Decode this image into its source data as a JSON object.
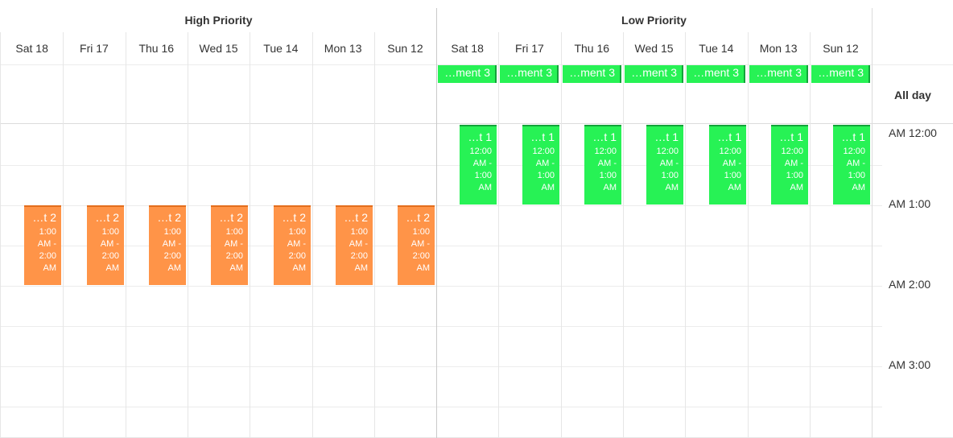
{
  "groups": [
    {
      "title": "High Priority",
      "days": [
        "Sat 18",
        "Fri 17",
        "Thu 16",
        "Wed 15",
        "Tue 14",
        "Mon 13",
        "Sun 12"
      ],
      "all_day": [],
      "appointments": [
        {
          "label": "…t 2",
          "time": "1:00 AM - 2:00 AM",
          "color": "orange"
        },
        {
          "label": "…t 2",
          "time": "1:00 AM - 2:00 AM",
          "color": "orange"
        },
        {
          "label": "…t 2",
          "time": "1:00 AM - 2:00 AM",
          "color": "orange"
        },
        {
          "label": "…t 2",
          "time": "1:00 AM - 2:00 AM",
          "color": "orange"
        },
        {
          "label": "…t 2",
          "time": "1:00 AM - 2:00 AM",
          "color": "orange"
        },
        {
          "label": "…t 2",
          "time": "1:00 AM - 2:00 AM",
          "color": "orange"
        },
        {
          "label": "…t 2",
          "time": "1:00 AM - 2:00 AM",
          "color": "orange"
        }
      ]
    },
    {
      "title": "Low Priority",
      "days": [
        "Sat 18",
        "Fri 17",
        "Thu 16",
        "Wed 15",
        "Tue 14",
        "Mon 13",
        "Sun 12"
      ],
      "all_day": [
        "…ment 3",
        "…ment 3",
        "…ment 3",
        "…ment 3",
        "…ment 3",
        "…ment 3",
        "…ment 3"
      ],
      "appointments": [
        {
          "label": "…t 1",
          "time": "12:00 AM - 1:00 AM",
          "color": "green"
        },
        {
          "label": "…t 1",
          "time": "12:00 AM - 1:00 AM",
          "color": "green"
        },
        {
          "label": "…t 1",
          "time": "12:00 AM - 1:00 AM",
          "color": "green"
        },
        {
          "label": "…t 1",
          "time": "12:00 AM - 1:00 AM",
          "color": "green"
        },
        {
          "label": "…t 1",
          "time": "12:00 AM - 1:00 AM",
          "color": "green"
        },
        {
          "label": "…t 1",
          "time": "12:00 AM - 1:00 AM",
          "color": "green"
        },
        {
          "label": "…t 1",
          "time": "12:00 AM - 1:00 AM",
          "color": "green"
        }
      ]
    }
  ],
  "all_day_label": "All day",
  "time_labels": [
    "AM 12:00",
    "AM 1:00",
    "AM 2:00",
    "AM 3:00"
  ],
  "colors": {
    "orange": "#ff9448",
    "green": "#27f255"
  }
}
